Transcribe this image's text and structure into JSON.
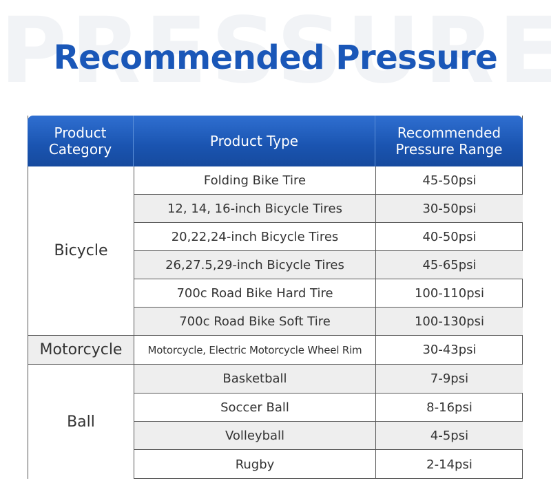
{
  "watermark": "PRESSURE",
  "title": "Recommended Pressure",
  "headers": {
    "category": [
      "Product",
      "Category"
    ],
    "type": "Product Type",
    "pressure": [
      "Recommended",
      "Pressure Range"
    ]
  },
  "groups": [
    {
      "category": "Bicycle",
      "rows": [
        {
          "type": "Folding Bike Tire",
          "pressure": "45-50psi"
        },
        {
          "type": "12, 14, 16-inch Bicycle Tires",
          "pressure": "30-50psi"
        },
        {
          "type": "20,22,24-inch Bicycle Tires",
          "pressure": "40-50psi"
        },
        {
          "type": "26,27.5,29-inch Bicycle Tires",
          "pressure": "45-65psi"
        },
        {
          "type": "700c Road Bike Hard Tire",
          "pressure": "100-110psi"
        },
        {
          "type": "700c Road Bike Soft Tire",
          "pressure": "100-130psi"
        }
      ]
    },
    {
      "category": "Motorcycle",
      "rows": [
        {
          "type": "Motorcycle, Electric Motorcycle Wheel Rim",
          "pressure": "30-43psi"
        }
      ]
    },
    {
      "category": "Ball",
      "rows": [
        {
          "type": "Basketball",
          "pressure": "7-9psi"
        },
        {
          "type": "Soccer Ball",
          "pressure": "8-16psi"
        },
        {
          "type": "Volleyball",
          "pressure": "4-5psi"
        },
        {
          "type": "Rugby",
          "pressure": "2-14psi"
        }
      ]
    }
  ]
}
